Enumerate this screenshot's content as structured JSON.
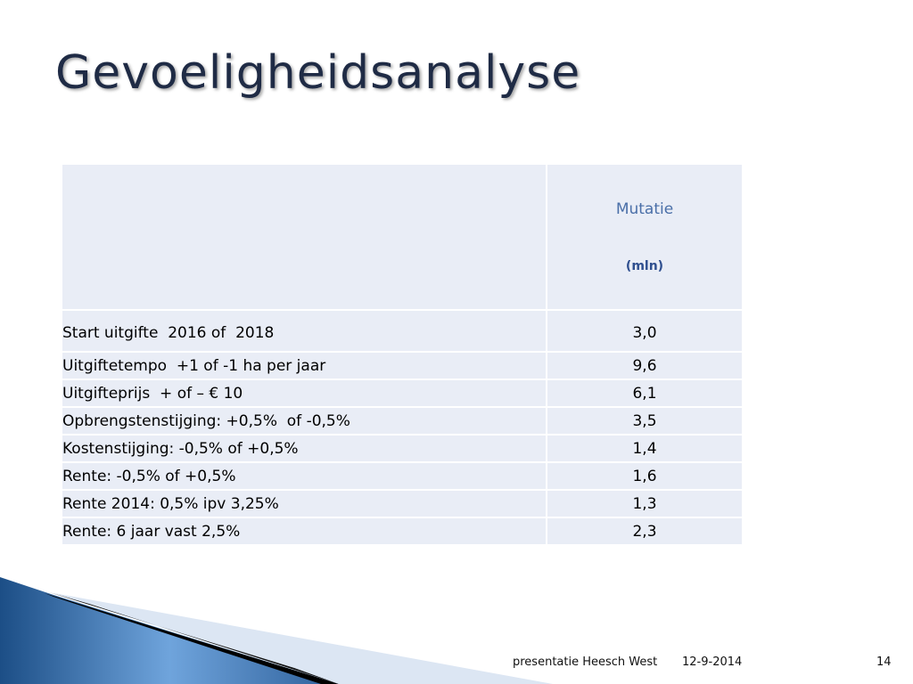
{
  "title": "Gevoeligheidsanalyse",
  "table": {
    "header": {
      "label": "Mutatie",
      "unit": "(mln)"
    },
    "rows": [
      [
        "Start uitgifte  2016 of  2018",
        "3,0"
      ],
      [
        "Uitgiftetempo  +1 of -1 ha per jaar",
        "9,6"
      ],
      [
        "Uitgifteprijs  + of – € 10",
        "6,1"
      ],
      [
        "Opbrengstenstijging: +0,5%  of -0,5%",
        "3,5"
      ],
      [
        "Kostenstijging: -0,5% of +0,5%",
        "1,4"
      ],
      [
        "Rente: -0,5% of +0,5%",
        "1,6"
      ],
      [
        "Rente 2014: 0,5% ipv 3,25%",
        "1,3"
      ],
      [
        "Rente: 6 jaar vast 2,5%",
        "2,3"
      ]
    ]
  },
  "footer": {
    "text": "presentatie Heesch West",
    "date": "12-9-2014",
    "page": "14"
  }
}
